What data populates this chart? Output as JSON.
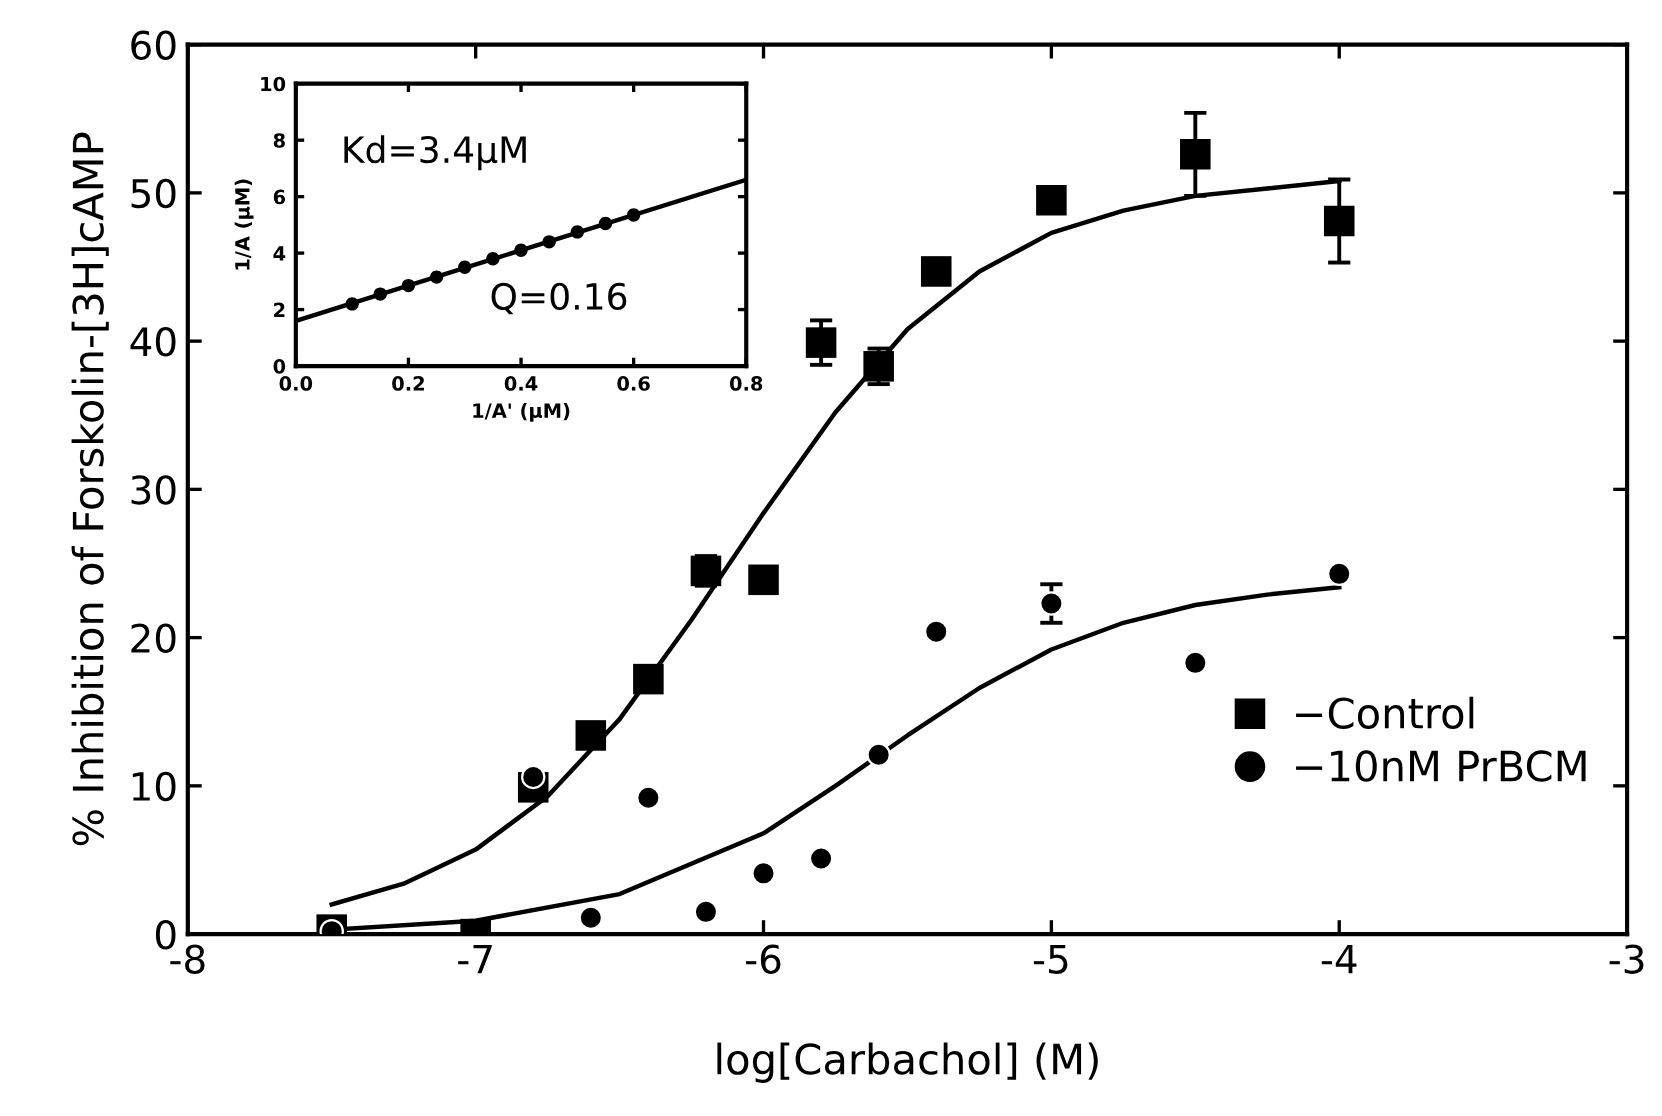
{
  "chart_data": [
    {
      "type": "scatter",
      "xlabel": "log[Carbachol] (M)",
      "ylabel": "% Inhibition of Forskolin-[3H]cAMP",
      "xlim": [
        -8,
        -3
      ],
      "xticks": [
        -8,
        -7,
        -6,
        -5,
        -4,
        -3
      ],
      "ylim": [
        0,
        60
      ],
      "yticks": [
        0,
        10,
        20,
        30,
        40,
        50,
        60
      ],
      "grid": false,
      "legend": "lower right",
      "series": [
        {
          "name": "−Control",
          "marker": "square",
          "color": "#000000",
          "x": [
            -7.5,
            -7.0,
            -6.8,
            -6.6,
            -6.4,
            -6.2,
            -6.0,
            -5.8,
            -5.6,
            -5.4,
            -5.0,
            -4.5,
            -4.0
          ],
          "values": [
            0.3,
            0,
            9.9,
            13.4,
            17.2,
            24.5,
            23.9,
            39.9,
            38.3,
            44.7,
            49.5,
            52.6,
            48.1
          ],
          "errors": [
            null,
            null,
            null,
            null,
            null,
            1.0,
            null,
            1.5,
            1.2,
            null,
            null,
            2.8,
            2.8
          ]
        },
        {
          "name": "−10nM PrBCM",
          "marker": "circle",
          "color": "#000000",
          "x": [
            -7.5,
            -6.8,
            -6.6,
            -6.4,
            -6.2,
            -6.0,
            -5.8,
            -5.6,
            -5.4,
            -5.0,
            -4.5,
            -4.0
          ],
          "values": [
            0.2,
            10.6,
            1.1,
            9.2,
            1.5,
            4.1,
            5.1,
            12.1,
            20.4,
            22.3,
            18.3,
            24.3
          ],
          "errors": [
            null,
            null,
            null,
            null,
            null,
            null,
            null,
            null,
            null,
            1.3,
            null,
            null
          ]
        },
        {
          "type": "line",
          "marker": "none",
          "color": "#000000",
          "x": [
            -7.5,
            -7.25,
            -7.0,
            -6.75,
            -6.5,
            -6.25,
            -6.0,
            -5.75,
            -5.5,
            -5.25,
            -5.0,
            -4.75,
            -4.5,
            -4.25,
            -4.0
          ],
          "values": [
            2.0,
            3.4,
            5.7,
            9.3,
            14.5,
            21.2,
            28.4,
            35.2,
            40.8,
            44.7,
            47.3,
            48.8,
            49.8,
            50.3,
            50.8
          ]
        },
        {
          "type": "line",
          "marker": "none",
          "color": "#000000",
          "x": [
            -7.5,
            -7.0,
            -6.5,
            -6.0,
            -5.75,
            -5.5,
            -5.25,
            -5.0,
            -4.75,
            -4.5,
            -4.25,
            -4.0
          ],
          "values": [
            0.3,
            0.9,
            2.7,
            6.8,
            10.0,
            13.4,
            16.6,
            19.2,
            21.0,
            22.2,
            22.9,
            23.4
          ]
        }
      ]
    },
    {
      "type": "line",
      "xlabel": "1/A' (μM)",
      "ylabel": "1/A (μM)",
      "xlim": [
        0,
        0.8
      ],
      "xticks": [
        {
          "value": 0,
          "label": "0.0"
        },
        {
          "value": 0.2,
          "label": "0.2"
        },
        {
          "value": 0.4,
          "label": "0.4"
        },
        {
          "value": 0.6,
          "label": "0.6"
        },
        {
          "value": 0.8,
          "label": "0.8"
        }
      ],
      "ylim": [
        0,
        10
      ],
      "yticks": [
        0,
        2,
        4,
        6,
        8,
        10
      ],
      "grid": false,
      "annotations": [
        "Kd=3.4μM",
        "Q=0.16"
      ],
      "series": [
        {
          "marker": "none",
          "color": "#000000",
          "x": [
            0,
            0.8
          ],
          "values": [
            1.6,
            6.6
          ]
        },
        {
          "type": "scatter",
          "marker": "circle",
          "color": "#000000",
          "x": [
            0.1,
            0.15,
            0.2,
            0.25,
            0.3,
            0.35,
            0.4,
            0.45,
            0.5,
            0.55,
            0.6
          ],
          "values": [
            2.2,
            2.55,
            2.85,
            3.15,
            3.5,
            3.8,
            4.1,
            4.4,
            4.75,
            5.05,
            5.35
          ]
        }
      ]
    }
  ]
}
